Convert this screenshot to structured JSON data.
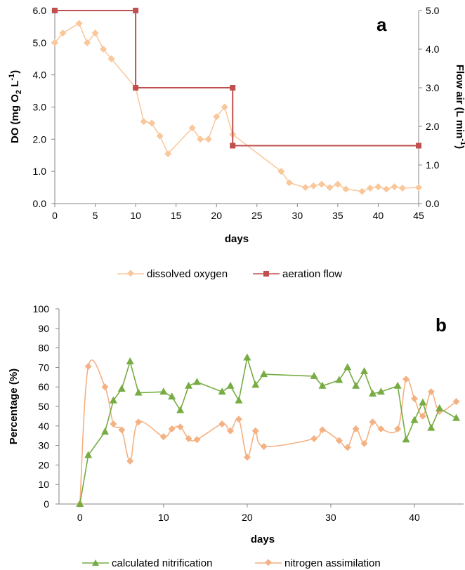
{
  "chart_data": [
    {
      "panel": "a",
      "type": "line",
      "xlabel": "days",
      "ylabel": "DO (mg O2 L-1)",
      "ylabel_right": "Flow air (L min-1)",
      "xlim": [
        0,
        45
      ],
      "ylim": [
        0,
        6
      ],
      "ylim_right": [
        0,
        5
      ],
      "x_ticks": [
        "0",
        "5",
        "10",
        "15",
        "20",
        "25",
        "30",
        "35",
        "40",
        "45"
      ],
      "y_ticks": [
        "0.0",
        "1.0",
        "2.0",
        "3.0",
        "4.0",
        "5.0",
        "6.0"
      ],
      "y_right_ticks": [
        "0.0",
        "1.0",
        "2.0",
        "3.0",
        "4.0",
        "5.0"
      ],
      "grid": false,
      "legend_position": "bottom",
      "series": [
        {
          "name": "dissolved oxygen",
          "axis": "left",
          "color": "#F9C79A",
          "marker": "diamond",
          "x": [
            0,
            1,
            3,
            4,
            5,
            6,
            7,
            10,
            11,
            12,
            13,
            14,
            17,
            18,
            19,
            20,
            21,
            22,
            28,
            29,
            31,
            32,
            33,
            34,
            35,
            36,
            38,
            39,
            40,
            41,
            42,
            43,
            45
          ],
          "y": [
            5.0,
            5.3,
            5.6,
            5.0,
            5.3,
            4.8,
            4.5,
            3.6,
            2.55,
            2.5,
            2.1,
            1.55,
            2.35,
            2.0,
            2.0,
            2.7,
            3.0,
            2.15,
            1.0,
            0.65,
            0.5,
            0.55,
            0.6,
            0.5,
            0.6,
            0.45,
            0.38,
            0.48,
            0.52,
            0.45,
            0.52,
            0.48,
            0.5
          ]
        },
        {
          "name": "aeration flow",
          "axis": "right",
          "color": "#C0504D",
          "marker": "square",
          "step": true,
          "x": [
            0,
            10,
            10,
            22,
            22,
            45
          ],
          "y": [
            5.0,
            5.0,
            3.0,
            3.0,
            1.5,
            1.5
          ]
        }
      ]
    },
    {
      "panel": "b",
      "type": "line",
      "xlabel": "days",
      "ylabel": "Percentage (%)",
      "xlim": [
        -2.5,
        45
      ],
      "ylim": [
        0,
        100
      ],
      "x_ticks": [
        "0",
        "10",
        "20",
        "30",
        "40"
      ],
      "y_ticks": [
        "0",
        "10",
        "20",
        "30",
        "40",
        "50",
        "60",
        "70",
        "80",
        "90",
        "100"
      ],
      "grid": false,
      "legend_position": "bottom",
      "series": [
        {
          "name": "calculated nitrification",
          "color": "#77AC43",
          "marker": "triangle",
          "smooth": false,
          "x": [
            0,
            1,
            3,
            4,
            5,
            6,
            7,
            10,
            11,
            12,
            13,
            14,
            17,
            18,
            19,
            20,
            21,
            22,
            28,
            29,
            31,
            32,
            33,
            34,
            35,
            36,
            38,
            39,
            40,
            41,
            42,
            43,
            45
          ],
          "y": [
            0,
            25,
            37,
            53,
            59,
            73,
            57,
            57.5,
            55,
            48,
            60.5,
            62.5,
            57.5,
            60.5,
            53,
            75,
            61,
            66.5,
            65.5,
            60.5,
            63.5,
            70,
            60.5,
            68,
            56.5,
            57.5,
            60.5,
            33,
            43,
            52,
            39,
            49,
            44
          ]
        },
        {
          "name": "nitrogen assimilation",
          "color": "#F4B183",
          "marker": "diamond",
          "smooth": true,
          "x": [
            0,
            1,
            3,
            4,
            5,
            6,
            7,
            10,
            11,
            12,
            13,
            14,
            17,
            18,
            19,
            20,
            21,
            22,
            28,
            29,
            31,
            32,
            33,
            34,
            35,
            36,
            38,
            39,
            40,
            41,
            42,
            43,
            45
          ],
          "y": [
            0,
            70.5,
            60,
            41,
            38,
            22,
            42,
            34.5,
            38.5,
            39.5,
            33.5,
            33,
            41,
            37.5,
            43.5,
            24,
            37.5,
            29.5,
            33.5,
            38,
            32.5,
            29,
            38.5,
            31,
            42,
            38.5,
            38.5,
            64,
            54,
            45,
            57.5,
            47.5,
            52.5
          ]
        }
      ]
    }
  ],
  "panel_labels": {
    "a": "a",
    "b": "b"
  },
  "legend_a": {
    "item1": "dissolved oxygen",
    "item2": "aeration flow"
  },
  "legend_b": {
    "item1": "calculated nitrification",
    "item2": "nitrogen assimilation"
  },
  "axis_titles": {
    "a_x": "days",
    "a_y_main": "DO (mg O",
    "a_y_sub": "2",
    "a_y_unit": " L",
    "a_y_sup": "-1",
    "a_y_end": ")",
    "a_y2_main": "Flow air (L min",
    "a_y2_sup": "-1",
    "a_y2_end": ")",
    "b_x": "days",
    "b_y": "Percentage (%)"
  }
}
